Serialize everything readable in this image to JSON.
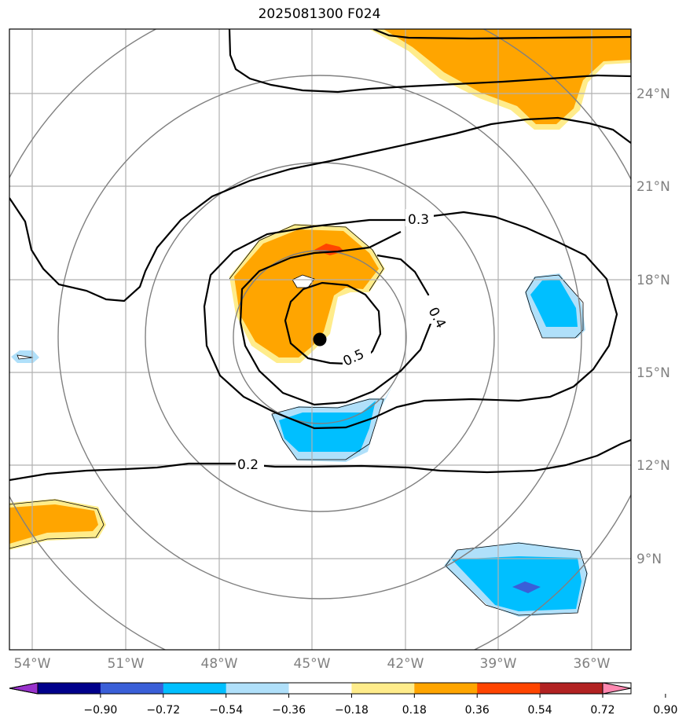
{
  "title": "2025081300 F024",
  "map": {
    "latitude_labels": [
      "24°N",
      "21°N",
      "18°N",
      "15°N",
      "12°N",
      "9°N"
    ],
    "longitude_labels": [
      "54°W",
      "51°W",
      "48°W",
      "45°W",
      "42°W",
      "39°W",
      "36°W"
    ],
    "contour_labels": [
      "0.3",
      "0.4",
      "0.5",
      "0.2"
    ],
    "storm_center": {
      "lon": "44.8°W",
      "lat": "16.1°N"
    },
    "colors": {
      "contour_line": "#000000",
      "range_rings": "#808080",
      "gridlines": "#b0b0b0",
      "storm_marker": "#000000"
    }
  },
  "colorbar": {
    "labels": [
      "−0.90",
      "−0.72",
      "−0.54",
      "−0.36",
      "−0.18",
      "0.18",
      "0.36",
      "0.54",
      "0.72",
      "0.90"
    ],
    "colors": [
      "#9932cc",
      "#00008b",
      "#3a5fd8",
      "#00bfff",
      "#b0e0fa",
      "#ffffff",
      "#ffec8b",
      "#ffa500",
      "#ff4500",
      "#b22222",
      "#ff88b0"
    ]
  }
}
